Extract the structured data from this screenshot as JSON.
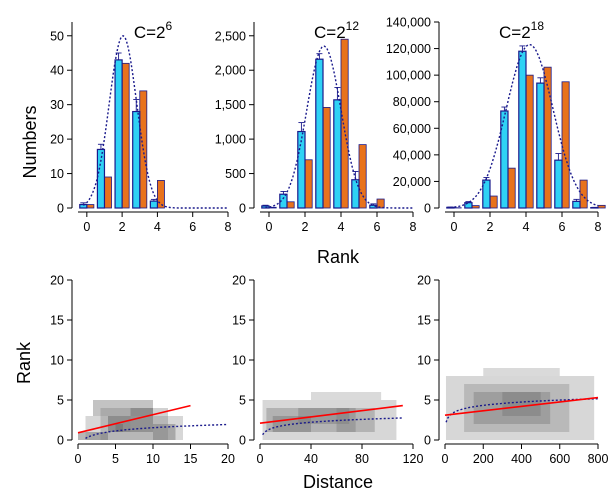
{
  "colors": {
    "observed_bar": "#e8721c",
    "model_bar": "#2fd2f5",
    "bar_edge": "#1a1a8c",
    "fit_curve": "#1a1a8c",
    "regression_line": "#ff0000",
    "heat_cell": "#7a7a7a"
  },
  "labels": {
    "top_ylabel": "Numbers",
    "top_xlabel": "Rank",
    "bottom_ylabel": "Rank",
    "bottom_xlabel": "Distance"
  },
  "chart_data": [
    {
      "type": "bar",
      "title": "C=2",
      "title_exponent": "6",
      "x": [
        0,
        1,
        2,
        3,
        4
      ],
      "series": [
        {
          "values": [
            1,
            9,
            42,
            34,
            8
          ]
        },
        {
          "values": [
            1,
            17,
            43,
            28,
            2
          ]
        }
      ],
      "errors": [
        0.5,
        1.5,
        2,
        3.5,
        0.5
      ],
      "fit_curve": {
        "mean": 2.05,
        "sd": 0.78,
        "peak": 50
      },
      "xlim": [
        -0.5,
        8
      ],
      "ylim": [
        0,
        54
      ],
      "xticks": [
        0,
        2,
        4,
        6,
        8
      ],
      "yticks": [
        0,
        10,
        20,
        30,
        40,
        50
      ],
      "ytick_labels": [
        "0",
        "10",
        "20",
        "30",
        "40",
        "50"
      ]
    },
    {
      "type": "bar",
      "title": "C=2",
      "title_exponent": "12",
      "x": [
        0,
        1,
        2,
        3,
        4,
        5,
        6
      ],
      "series": [
        {
          "values": [
            10,
            90,
            700,
            1460,
            2450,
            920,
            130
          ]
        },
        {
          "values": [
            30,
            200,
            1110,
            2160,
            1570,
            410,
            40
          ]
        }
      ],
      "errors": [
        10,
        40,
        130,
        80,
        180,
        120,
        20
      ],
      "fit_curve": {
        "mean": 3.05,
        "sd": 0.95,
        "peak": 2350
      },
      "xlim": [
        -0.5,
        8
      ],
      "ylim": [
        0,
        2700
      ],
      "xticks": [
        0,
        2,
        4,
        6,
        8
      ],
      "yticks": [
        0,
        500,
        1000,
        1500,
        2000,
        2500
      ],
      "ytick_labels": [
        "0",
        "500",
        "1,000",
        "1,500",
        "2,000",
        "2,500"
      ]
    },
    {
      "type": "bar",
      "title": "C=2",
      "title_exponent": "18",
      "x": [
        0,
        1,
        2,
        3,
        4,
        5,
        6,
        7,
        8
      ],
      "series": [
        {
          "values": [
            200,
            1800,
            9000,
            30000,
            100000,
            106000,
            95000,
            21000,
            2000
          ]
        },
        {
          "values": [
            500,
            4000,
            21000,
            73000,
            118000,
            94000,
            36000,
            5000,
            300
          ]
        }
      ],
      "errors": [
        200,
        800,
        2000,
        3000,
        4000,
        4000,
        5000,
        1500,
        200
      ],
      "fit_curve": {
        "mean": 4.2,
        "sd": 1.3,
        "peak": 123000
      },
      "xlim": [
        -0.5,
        8
      ],
      "ylim": [
        0,
        140000
      ],
      "xticks": [
        0,
        2,
        4,
        6,
        8
      ],
      "yticks": [
        0,
        20000,
        40000,
        60000,
        80000,
        100000,
        120000,
        140000
      ],
      "ytick_labels": [
        "0",
        "20,000",
        "40,000",
        "60,000",
        "80,000",
        "100,000",
        "120,000",
        "140,000"
      ]
    },
    {
      "type": "heatmap",
      "xlim": [
        0,
        20
      ],
      "ylim": [
        0,
        20
      ],
      "xticks": [
        0,
        5,
        10,
        15,
        20
      ],
      "yticks": [
        0,
        5,
        10,
        15,
        20
      ],
      "regression_line": {
        "x": [
          0,
          15
        ],
        "y": [
          0.9,
          4.3
        ]
      },
      "fit_curve": {
        "x0": 1,
        "x1": 20,
        "a": 0.2,
        "b": 0.58,
        "floor": -1.2
      },
      "cells": [
        {
          "x": 3,
          "w": 9,
          "y": 0,
          "h": 4,
          "shade": 0.35
        },
        {
          "x": 1,
          "w": 13,
          "y": 0,
          "h": 3,
          "shade": 0.3
        },
        {
          "x": 2,
          "w": 8,
          "y": 3,
          "h": 2,
          "shade": 0.45
        },
        {
          "x": 4,
          "w": 3,
          "y": 1,
          "h": 2,
          "shade": 0.7
        },
        {
          "x": 7,
          "w": 3,
          "y": 1,
          "h": 3,
          "shade": 0.6
        },
        {
          "x": 5,
          "w": 1,
          "y": 1,
          "h": 1,
          "shade": 0.95
        },
        {
          "x": 10,
          "w": 3,
          "y": 0,
          "h": 2,
          "shade": 0.5
        },
        {
          "x": 0,
          "w": 4,
          "y": 0,
          "h": 1,
          "shade": 0.55
        }
      ]
    },
    {
      "type": "heatmap",
      "xlim": [
        0,
        120
      ],
      "ylim": [
        0,
        20
      ],
      "xticks": [
        0,
        40,
        80,
        120
      ],
      "yticks": [
        0,
        5,
        10,
        15,
        20
      ],
      "regression_line": {
        "x": [
          0,
          112
        ],
        "y": [
          2.1,
          4.3
        ]
      },
      "fit_curve": {
        "x0": 2,
        "x1": 112,
        "a": 0.3,
        "b": 0.52,
        "floor": -0.2
      },
      "cells": [
        {
          "x": 2,
          "w": 105,
          "y": 0,
          "h": 5,
          "shade": 0.3
        },
        {
          "x": 40,
          "w": 55,
          "y": 5,
          "h": 1,
          "shade": 0.28
        },
        {
          "x": 5,
          "w": 70,
          "y": 1,
          "h": 3,
          "shade": 0.4
        },
        {
          "x": 10,
          "w": 30,
          "y": 1,
          "h": 2,
          "shade": 0.5
        },
        {
          "x": 30,
          "w": 40,
          "y": 2,
          "h": 2,
          "shade": 0.45
        },
        {
          "x": 60,
          "w": 30,
          "y": 1,
          "h": 3,
          "shade": 0.38
        }
      ]
    },
    {
      "type": "heatmap",
      "xlim": [
        0,
        800
      ],
      "ylim": [
        0,
        20
      ],
      "xticks": [
        0,
        200,
        400,
        600,
        800
      ],
      "yticks": [
        0,
        5,
        10,
        15,
        20
      ],
      "regression_line": {
        "x": [
          0,
          800
        ],
        "y": [
          3.1,
          5.3
        ]
      },
      "fit_curve": {
        "x0": 6,
        "x1": 800,
        "a": 1.15,
        "b": 0.6,
        "floor": 1.2
      },
      "cells": [
        {
          "x": 5,
          "w": 775,
          "y": 0,
          "h": 8,
          "shade": 0.3
        },
        {
          "x": 100,
          "w": 550,
          "y": 1,
          "h": 6,
          "shade": 0.32
        },
        {
          "x": 200,
          "w": 400,
          "y": 8,
          "h": 1,
          "shade": 0.28
        },
        {
          "x": 150,
          "w": 400,
          "y": 2,
          "h": 4,
          "shade": 0.42
        },
        {
          "x": 300,
          "w": 200,
          "y": 3,
          "h": 3,
          "shade": 0.5
        }
      ]
    }
  ]
}
